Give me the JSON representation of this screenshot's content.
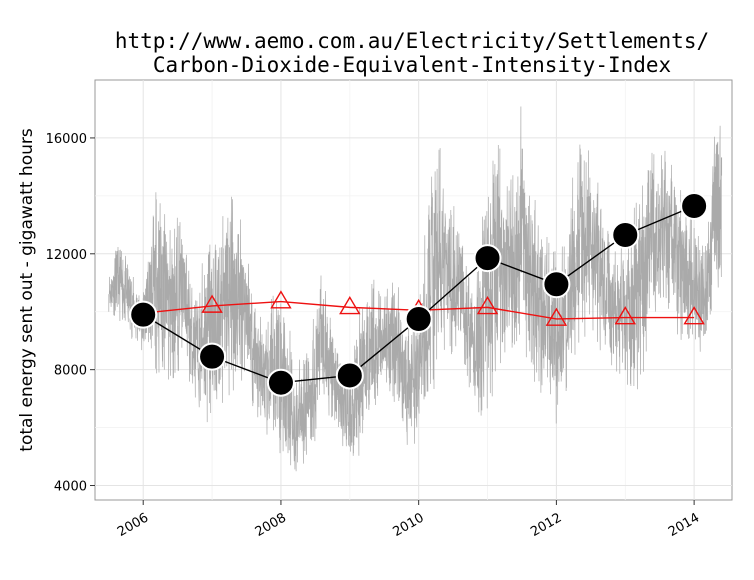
{
  "chart_data": {
    "type": "line",
    "title": "http://www.aemo.com.au/Electricity/Settlements/\nCarbon-Dioxide-Equivalent-Intensity-Index",
    "title_lines": [
      "http://www.aemo.com.au/Electricity/Settlements/",
      "Carbon-Dioxide-Equivalent-Intensity-Index"
    ],
    "xlabel": "",
    "ylabel": "total energy sent out - gigawatt hours",
    "xlim": [
      2005.3,
      2014.55
    ],
    "ylim": [
      3500,
      18000
    ],
    "x_ticks": [
      2006,
      2008,
      2010,
      2012,
      2014
    ],
    "x_tick_labels": [
      "2006",
      "2008",
      "2010",
      "2012",
      "2014"
    ],
    "y_ticks": [
      4000,
      8000,
      12000,
      16000
    ],
    "y_tick_labels": [
      "4000",
      "8000",
      "12000",
      "16000"
    ],
    "grid": true,
    "background": "#ffffff",
    "series": [
      {
        "style": "thin grey line (daily values, approximate envelope)",
        "color": "#aaaaaa",
        "x": [
          2005.5,
          2005.6,
          2005.7,
          2005.8,
          2005.9,
          2006.0,
          2006.1,
          2006.2,
          2006.3,
          2006.4,
          2006.5,
          2006.6,
          2006.7,
          2006.8,
          2006.9,
          2007.0,
          2007.1,
          2007.2,
          2007.3,
          2007.4,
          2007.5,
          2007.6,
          2007.7,
          2007.8,
          2007.9,
          2008.0,
          2008.1,
          2008.2,
          2008.3,
          2008.4,
          2008.5,
          2008.6,
          2008.7,
          2008.8,
          2008.9,
          2009.0,
          2009.1,
          2009.2,
          2009.3,
          2009.4,
          2009.5,
          2009.6,
          2009.7,
          2009.8,
          2009.9,
          2010.0,
          2010.1,
          2010.2,
          2010.3,
          2010.4,
          2010.5,
          2010.6,
          2010.7,
          2010.8,
          2010.9,
          2011.0,
          2011.1,
          2011.2,
          2011.3,
          2011.4,
          2011.5,
          2011.6,
          2011.7,
          2011.8,
          2011.9,
          2012.0,
          2012.1,
          2012.2,
          2012.3,
          2012.4,
          2012.5,
          2012.6,
          2012.7,
          2012.8,
          2012.9,
          2013.0,
          2013.1,
          2013.2,
          2013.3,
          2013.4,
          2013.5,
          2013.6,
          2013.7,
          2013.8,
          2013.9,
          2014.0,
          2014.1,
          2014.2,
          2014.3,
          2014.4
        ],
        "low": [
          10000,
          9800,
          9600,
          9200,
          8800,
          8600,
          8400,
          7800,
          7200,
          7000,
          7800,
          8800,
          7000,
          6500,
          5800,
          5800,
          6000,
          6500,
          7000,
          7500,
          7800,
          6500,
          6000,
          5500,
          5000,
          4900,
          4500,
          4300,
          4600,
          5200,
          5500,
          6800,
          6300,
          5800,
          5300,
          5000,
          4700,
          5300,
          6200,
          6800,
          7500,
          7200,
          6200,
          5600,
          5000,
          5800,
          6300,
          7000,
          7500,
          8300,
          8600,
          9000,
          7600,
          6500,
          6200,
          6400,
          7000,
          7500,
          8000,
          8800,
          9000,
          8000,
          7300,
          6500,
          6500,
          6000,
          6500,
          7500,
          8500,
          9000,
          9300,
          8800,
          8300,
          7800,
          7700,
          7500,
          7300,
          7200,
          8300,
          9300,
          10300,
          9800,
          9300,
          8800,
          9000,
          9000,
          8500,
          9000,
          10500,
          11000
        ],
        "high": [
          11300,
          12200,
          12300,
          11500,
          11000,
          10800,
          12500,
          14500,
          14500,
          13000,
          13500,
          12500,
          11000,
          10500,
          13000,
          13000,
          12500,
          14000,
          14200,
          13500,
          12800,
          11000,
          10000,
          9500,
          11000,
          12000,
          10000,
          8000,
          8500,
          9000,
          10500,
          11500,
          10000,
          9000,
          8500,
          8000,
          9500,
          11000,
          11500,
          11000,
          10500,
          11500,
          11000,
          9500,
          9500,
          10000,
          13000,
          15500,
          15800,
          14500,
          14000,
          13000,
          11500,
          10500,
          12500,
          16000,
          16200,
          15500,
          14500,
          15500,
          17600,
          15000,
          14000,
          13000,
          12500,
          12000,
          12500,
          14000,
          16300,
          15800,
          15500,
          14500,
          13500,
          12500,
          12000,
          13000,
          13500,
          14000,
          15000,
          16000,
          15800,
          15500,
          15000,
          14500,
          13500,
          13500,
          12500,
          13500,
          16500,
          16800
        ]
      },
      {
        "style": "black line with large filled circles",
        "color": "#000000",
        "marker": "circle-filled",
        "x": [
          2006,
          2007,
          2008,
          2009,
          2010,
          2011,
          2012,
          2013,
          2014
        ],
        "values": [
          9900,
          8450,
          7550,
          7800,
          9750,
          11850,
          10950,
          12650,
          13650
        ]
      },
      {
        "style": "red line with open triangles",
        "color": "#ee1111",
        "marker": "triangle-open",
        "x": [
          2006,
          2007,
          2008,
          2009,
          2010,
          2011,
          2012,
          2013,
          2014
        ],
        "values": [
          9950,
          10200,
          10350,
          10150,
          10050,
          10150,
          9750,
          9800,
          9800
        ]
      }
    ]
  }
}
